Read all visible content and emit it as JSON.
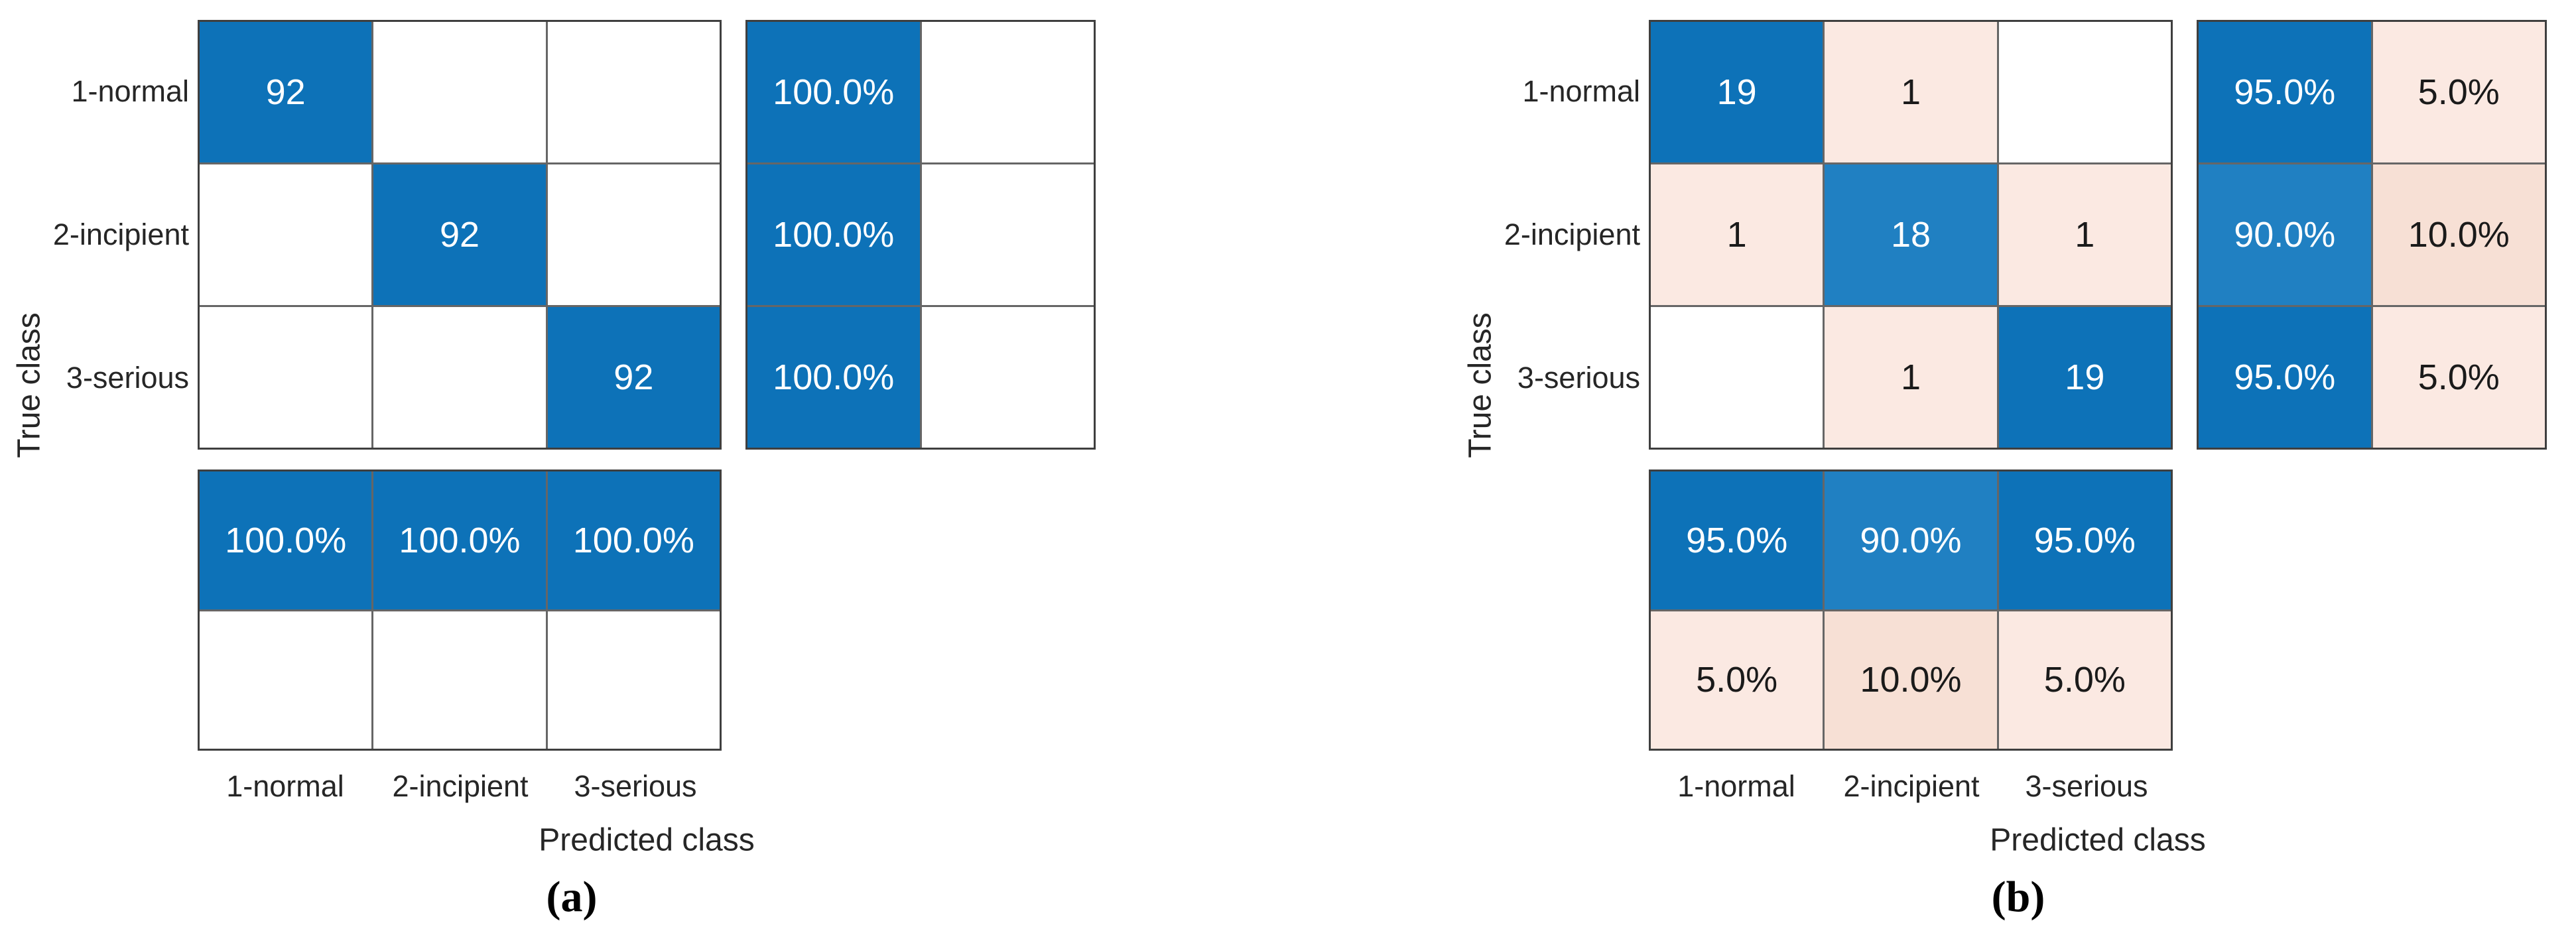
{
  "figure": {
    "description": "Two MATLAB-style confusion matrix charts with row-normalized and column-normalized summaries",
    "captions": [
      "(a)",
      "(b)"
    ]
  },
  "palette": {
    "blue": "#0d72b8",
    "blue_light": "#2080c2",
    "peach": "#fbe9e2",
    "peach_dark": "#f7e0d5",
    "white": "#ffffff",
    "text_on_blue": "#ffffff",
    "text_on_peach": "#1a1a1a",
    "grid_line": "#666666",
    "outer_border": "#3f3f3f",
    "axis_text": "#262626"
  },
  "chart_data": [
    {
      "type": "heatmap",
      "variant": "confusion-matrix",
      "caption": "(a)",
      "xlabel": "Predicted class",
      "ylabel": "True class",
      "classes": [
        "1-normal",
        "2-incipient",
        "3-serious"
      ],
      "matrix": [
        [
          {
            "v": "92",
            "c": "blue"
          },
          {
            "v": "",
            "c": "white"
          },
          {
            "v": "",
            "c": "white"
          }
        ],
        [
          {
            "v": "",
            "c": "white"
          },
          {
            "v": "92",
            "c": "blue"
          },
          {
            "v": "",
            "c": "white"
          }
        ],
        [
          {
            "v": "",
            "c": "white"
          },
          {
            "v": "",
            "c": "white"
          },
          {
            "v": "92",
            "c": "blue"
          }
        ]
      ],
      "row_summary": [
        [
          {
            "v": "100.0%",
            "c": "blue"
          },
          {
            "v": "",
            "c": "white"
          }
        ],
        [
          {
            "v": "100.0%",
            "c": "blue"
          },
          {
            "v": "",
            "c": "white"
          }
        ],
        [
          {
            "v": "100.0%",
            "c": "blue"
          },
          {
            "v": "",
            "c": "white"
          }
        ]
      ],
      "col_summary": [
        [
          {
            "v": "100.0%",
            "c": "blue"
          },
          {
            "v": "100.0%",
            "c": "blue"
          },
          {
            "v": "100.0%",
            "c": "blue"
          }
        ],
        [
          {
            "v": "",
            "c": "white"
          },
          {
            "v": "",
            "c": "white"
          },
          {
            "v": "",
            "c": "white"
          }
        ]
      ]
    },
    {
      "type": "heatmap",
      "variant": "confusion-matrix",
      "caption": "(b)",
      "xlabel": "Predicted class",
      "ylabel": "True class",
      "classes": [
        "1-normal",
        "2-incipient",
        "3-serious"
      ],
      "matrix": [
        [
          {
            "v": "19",
            "c": "blue"
          },
          {
            "v": "1",
            "c": "peach"
          },
          {
            "v": "",
            "c": "white"
          }
        ],
        [
          {
            "v": "1",
            "c": "peach"
          },
          {
            "v": "18",
            "c": "blue_light"
          },
          {
            "v": "1",
            "c": "peach"
          }
        ],
        [
          {
            "v": "",
            "c": "white"
          },
          {
            "v": "1",
            "c": "peach"
          },
          {
            "v": "19",
            "c": "blue"
          }
        ]
      ],
      "row_summary": [
        [
          {
            "v": "95.0%",
            "c": "blue"
          },
          {
            "v": "5.0%",
            "c": "peach"
          }
        ],
        [
          {
            "v": "90.0%",
            "c": "blue_light"
          },
          {
            "v": "10.0%",
            "c": "peach_dark"
          }
        ],
        [
          {
            "v": "95.0%",
            "c": "blue"
          },
          {
            "v": "5.0%",
            "c": "peach"
          }
        ]
      ],
      "col_summary": [
        [
          {
            "v": "95.0%",
            "c": "blue"
          },
          {
            "v": "90.0%",
            "c": "blue_light"
          },
          {
            "v": "95.0%",
            "c": "blue"
          }
        ],
        [
          {
            "v": "5.0%",
            "c": "peach"
          },
          {
            "v": "10.0%",
            "c": "peach_dark"
          },
          {
            "v": "5.0%",
            "c": "peach"
          }
        ]
      ]
    }
  ]
}
